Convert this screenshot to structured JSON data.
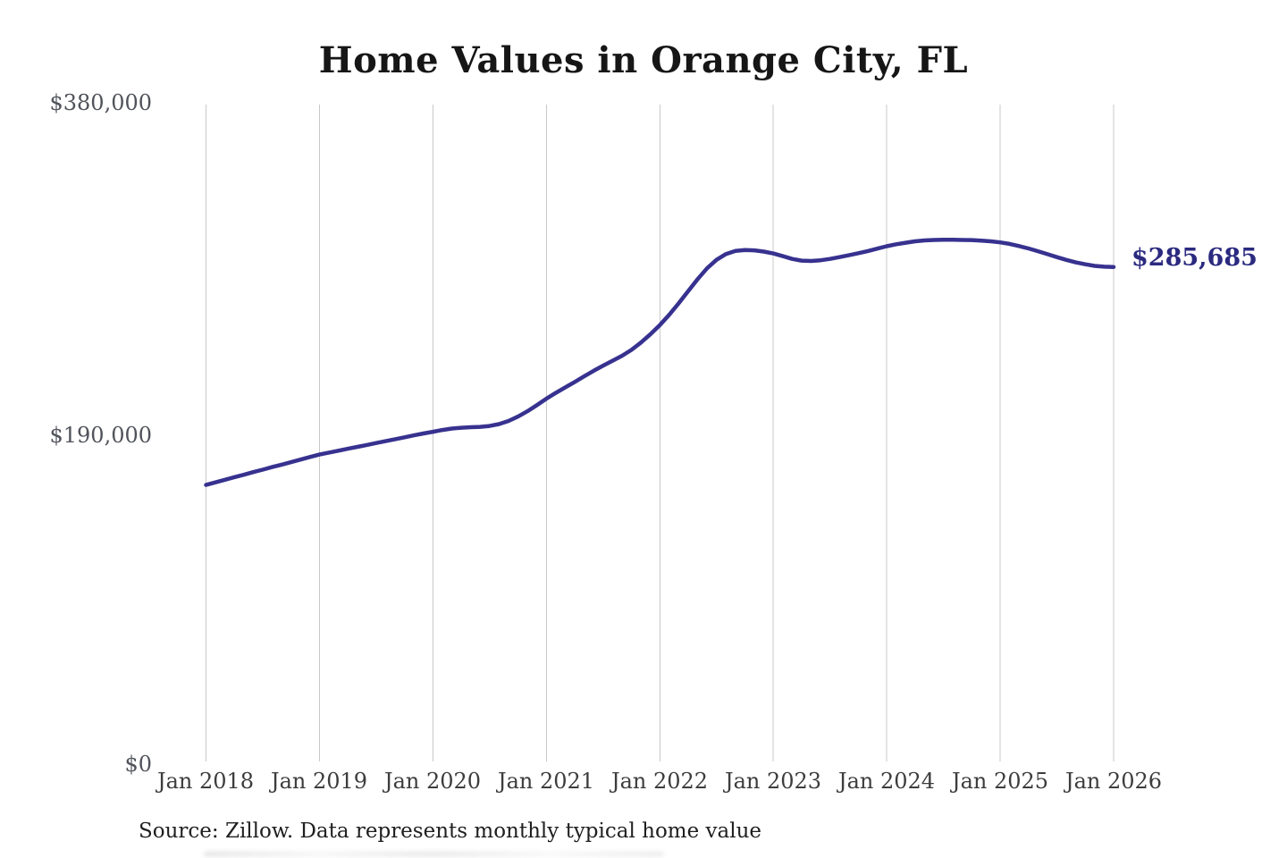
{
  "title": "Home Values in Orange City, FL",
  "source_note": "Source: Zillow. Data represents monthly typical home value",
  "end_label": "$285,685",
  "colors": {
    "line": "#37328f",
    "end_label_text": "#2b2a80",
    "gridline": "#c9c9c9",
    "title_text": "#161616",
    "y_tick_text": "#50535a",
    "x_tick_text": "#3d3d3d",
    "background": "#ffffff"
  },
  "chart_data": {
    "type": "line",
    "title": "Home Values in Orange City, FL",
    "xlabel": "",
    "ylabel": "",
    "ylim": [
      0,
      380000
    ],
    "y_tick_labels": [
      "$380,000",
      "$190,000",
      "$0"
    ],
    "y_tick_values": [
      380000,
      190000,
      0
    ],
    "x_tick_labels": [
      "Jan 2018",
      "Jan 2019",
      "Jan 2020",
      "Jan 2021",
      "Jan 2022",
      "Jan 2023",
      "Jan 2024",
      "Jan 2025",
      "Jan 2026"
    ],
    "grid": "vertical-only",
    "legend": "none",
    "frequency": "monthly",
    "x_start": "2018-01",
    "x_end": "2026-01",
    "end_value": 285685,
    "series": [
      {
        "name": "Typical home value",
        "values": [
          160400,
          161900,
          163400,
          164900,
          166300,
          167800,
          169200,
          170700,
          172100,
          173500,
          175000,
          176500,
          177900,
          179000,
          180100,
          181200,
          182300,
          183400,
          184500,
          185600,
          186700,
          187800,
          188900,
          190000,
          191000,
          192000,
          192800,
          193300,
          193600,
          193800,
          194300,
          195400,
          197200,
          199700,
          202800,
          206300,
          210000,
          213300,
          216500,
          219600,
          222800,
          226000,
          229000,
          231800,
          234600,
          238000,
          242200,
          247000,
          252300,
          258200,
          264800,
          271800,
          278700,
          284900,
          289800,
          293100,
          294900,
          295400,
          295200,
          294500,
          293400,
          291900,
          290300,
          289300,
          289100,
          289500,
          290300,
          291300,
          292400,
          293600,
          294800,
          296200,
          297600,
          298700,
          299600,
          300400,
          300900,
          301200,
          301300,
          301300,
          301200,
          301100,
          300800,
          300400,
          299800,
          298900,
          297700,
          296300,
          294700,
          293000,
          291300,
          289700,
          288300,
          287200,
          286300,
          285800,
          285685
        ]
      }
    ]
  }
}
